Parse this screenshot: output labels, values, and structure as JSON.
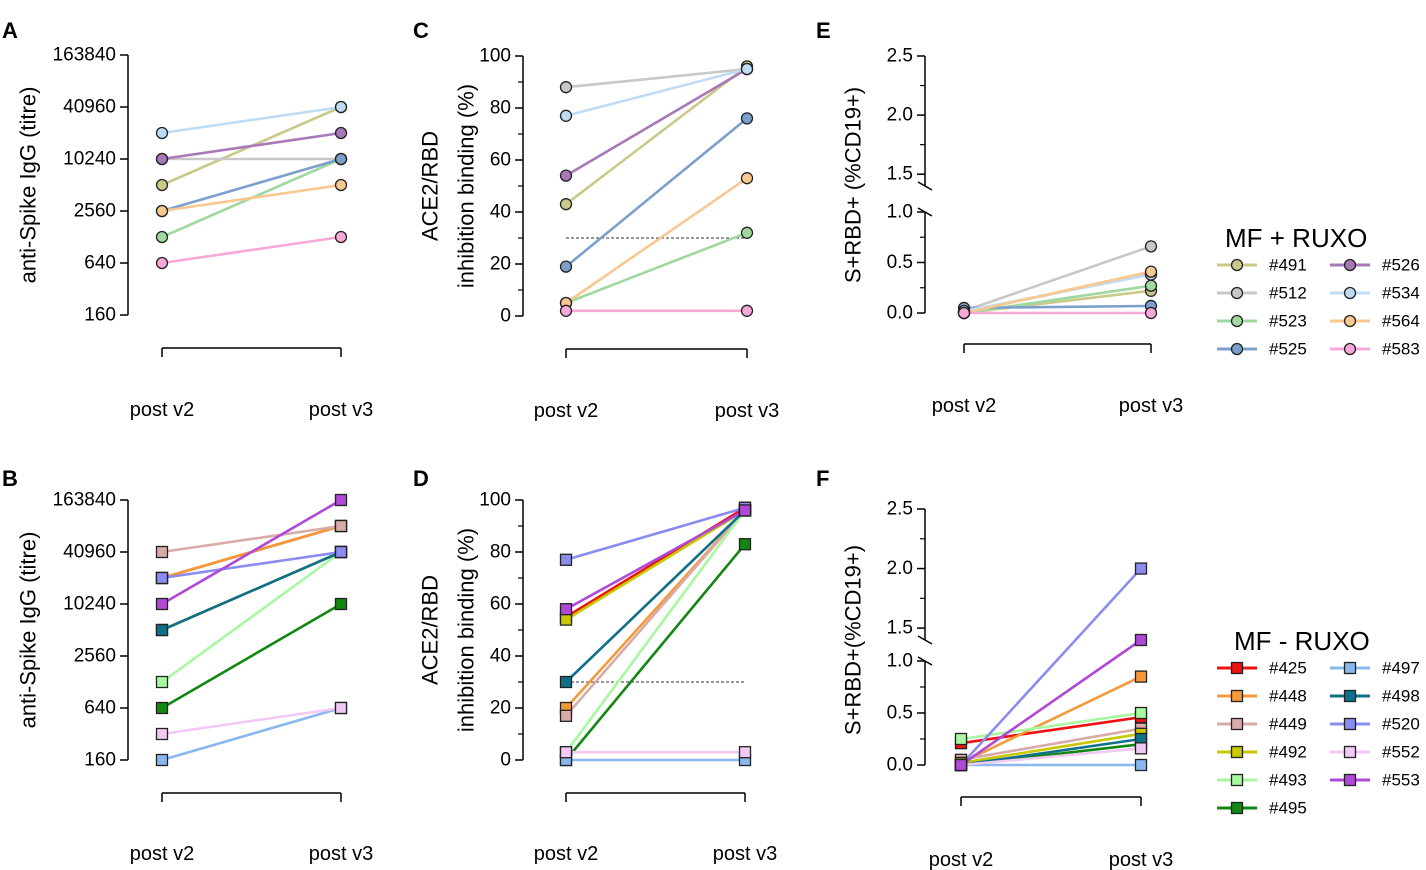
{
  "figure": {
    "legends": [
      {
        "title": "MF + RUXO",
        "marker": "circle",
        "entries": [
          {
            "id": "#491",
            "color": "#c9c98a"
          },
          {
            "id": "#512",
            "color": "#c8c8c8"
          },
          {
            "id": "#523",
            "color": "#a0d8a0"
          },
          {
            "id": "#525",
            "color": "#7ba0cc"
          },
          {
            "id": "#526",
            "color": "#a878b8"
          },
          {
            "id": "#534",
            "color": "#c0dcf4"
          },
          {
            "id": "#564",
            "color": "#f8c890"
          },
          {
            "id": "#583",
            "color": "#f8a8d8"
          }
        ]
      },
      {
        "title": "MF - RUXO",
        "marker": "square",
        "entries": [
          {
            "id": "#425",
            "color": "#ee1111"
          },
          {
            "id": "#448",
            "color": "#f59a3a"
          },
          {
            "id": "#449",
            "color": "#d8aaa8"
          },
          {
            "id": "#492",
            "color": "#c8c800"
          },
          {
            "id": "#493",
            "color": "#a8f8a0"
          },
          {
            "id": "#495",
            "color": "#118811"
          },
          {
            "id": "#497",
            "color": "#8ab8ee"
          },
          {
            "id": "#498",
            "color": "#10708a"
          },
          {
            "id": "#520",
            "color": "#8a8cf0"
          },
          {
            "id": "#552",
            "color": "#f4c8f4"
          },
          {
            "id": "#553",
            "color": "#b048d8"
          }
        ]
      }
    ]
  },
  "chart_data": [
    {
      "panel": "A",
      "type": "line",
      "scale": "log2",
      "legend": 0,
      "ylabel": "anti-Spike IgG (titre)",
      "categories": [
        "post v2",
        "post v3"
      ],
      "yticks": [
        160,
        640,
        2560,
        10240,
        40960,
        163840
      ],
      "ytick_labels": [
        "160",
        "640",
        "2560",
        "10240",
        "40960",
        "163840"
      ],
      "ylim": [
        160,
        163840
      ],
      "series": [
        {
          "name": "#491",
          "values": [
            5120,
            40960
          ]
        },
        {
          "name": "#512",
          "values": [
            10240,
            10240
          ]
        },
        {
          "name": "#523",
          "values": [
            1280,
            10240
          ]
        },
        {
          "name": "#525",
          "values": [
            2560,
            10240
          ]
        },
        {
          "name": "#526",
          "values": [
            10240,
            20480
          ]
        },
        {
          "name": "#534",
          "values": [
            20480,
            40960
          ]
        },
        {
          "name": "#564",
          "values": [
            2560,
            5120
          ]
        },
        {
          "name": "#583",
          "values": [
            640,
            1280
          ]
        }
      ]
    },
    {
      "panel": "B",
      "type": "line",
      "scale": "log2",
      "legend": 1,
      "ylabel": "anti-Spike IgG (titre)",
      "categories": [
        "post v2",
        "post v3"
      ],
      "yticks": [
        160,
        640,
        2560,
        10240,
        40960,
        163840
      ],
      "ytick_labels": [
        "160",
        "640",
        "2560",
        "10240",
        "40960",
        "163840"
      ],
      "ylim": [
        160,
        163840
      ],
      "series": [
        {
          "name": "#425",
          "values": [
            20480,
            81920
          ]
        },
        {
          "name": "#448",
          "values": [
            20480,
            81920
          ]
        },
        {
          "name": "#449",
          "values": [
            40960,
            81920
          ]
        },
        {
          "name": "#492",
          "values": [
            5120,
            40960
          ]
        },
        {
          "name": "#493",
          "values": [
            1280,
            40960
          ]
        },
        {
          "name": "#495",
          "values": [
            640,
            10240
          ]
        },
        {
          "name": "#497",
          "values": [
            160,
            640
          ]
        },
        {
          "name": "#498",
          "values": [
            5120,
            40960
          ]
        },
        {
          "name": "#520",
          "values": [
            20480,
            40960
          ]
        },
        {
          "name": "#552",
          "values": [
            320,
            640
          ]
        },
        {
          "name": "#553",
          "values": [
            10240,
            163840
          ]
        }
      ]
    },
    {
      "panel": "C",
      "type": "line",
      "scale": "linear",
      "legend": 0,
      "ylabel": "ACE2/RBD",
      "ylabel2": "inhibition binding (%)",
      "categories": [
        "post v2",
        "post v3"
      ],
      "yticks": [
        0,
        20,
        40,
        60,
        80,
        100
      ],
      "ytick_labels": [
        "0",
        "20",
        "40",
        "60",
        "80",
        "100"
      ],
      "ylim": [
        0,
        100
      ],
      "reference_line": 30,
      "series": [
        {
          "name": "#491",
          "values": [
            43,
            96
          ]
        },
        {
          "name": "#512",
          "values": [
            88,
            95
          ]
        },
        {
          "name": "#523",
          "values": [
            5,
            32
          ]
        },
        {
          "name": "#525",
          "values": [
            19,
            76
          ]
        },
        {
          "name": "#526",
          "values": [
            54,
            95
          ]
        },
        {
          "name": "#534",
          "values": [
            77,
            95
          ]
        },
        {
          "name": "#564",
          "values": [
            5,
            53
          ]
        },
        {
          "name": "#583",
          "values": [
            2,
            2
          ]
        }
      ]
    },
    {
      "panel": "D",
      "type": "line",
      "scale": "linear",
      "legend": 1,
      "ylabel": "ACE2/RBD",
      "ylabel2": "inhibition binding (%)",
      "categories": [
        "post v2",
        "post v3"
      ],
      "yticks": [
        0,
        20,
        40,
        60,
        80,
        100
      ],
      "ytick_labels": [
        "0",
        "20",
        "40",
        "60",
        "80",
        "100"
      ],
      "ylim": [
        0,
        100
      ],
      "reference_line": 30,
      "series": [
        {
          "name": "#425",
          "values": [
            55,
            97
          ]
        },
        {
          "name": "#448",
          "values": [
            20,
            96
          ]
        },
        {
          "name": "#449",
          "values": [
            17,
            96
          ]
        },
        {
          "name": "#492",
          "values": [
            54,
            96
          ]
        },
        {
          "name": "#493",
          "values": [
            3,
            96
          ]
        },
        {
          "name": "#495",
          "values": [
            0,
            83
          ]
        },
        {
          "name": "#497",
          "values": [
            0,
            0
          ]
        },
        {
          "name": "#498",
          "values": [
            30,
            96
          ]
        },
        {
          "name": "#520",
          "values": [
            77,
            97
          ]
        },
        {
          "name": "#552",
          "values": [
            3,
            3
          ]
        },
        {
          "name": "#553",
          "values": [
            58,
            96
          ]
        }
      ]
    },
    {
      "panel": "E",
      "type": "line",
      "scale": "broken",
      "legend": 0,
      "ylabel": "S+RBD+ (%CD19+)",
      "categories": [
        "post v2",
        "post v3"
      ],
      "yticks_lower": [
        0.0,
        0.5,
        1.0
      ],
      "ytick_labels_lower": [
        "0.0",
        "0.5",
        "1.0"
      ],
      "yticks_upper": [
        1.5,
        2.0,
        2.5
      ],
      "ytick_labels_upper": [
        "1.5",
        "2.0",
        "2.5"
      ],
      "ylim_lower": [
        0,
        1.0
      ],
      "ylim_upper": [
        1.4,
        2.5
      ],
      "series": [
        {
          "name": "#491",
          "values": [
            0.0,
            0.22
          ]
        },
        {
          "name": "#512",
          "values": [
            0.02,
            0.66
          ]
        },
        {
          "name": "#523",
          "values": [
            0.0,
            0.27
          ]
        },
        {
          "name": "#525",
          "values": [
            0.05,
            0.07
          ]
        },
        {
          "name": "#526",
          "values": [
            0.01,
            0.39
          ]
        },
        {
          "name": "#534",
          "values": [
            0.02,
            0.38
          ]
        },
        {
          "name": "#564",
          "values": [
            0.0,
            0.41
          ]
        },
        {
          "name": "#583",
          "values": [
            0.0,
            0.0
          ]
        }
      ]
    },
    {
      "panel": "F",
      "type": "line",
      "scale": "broken",
      "legend": 1,
      "ylabel": "S+RBD+(%CD19+)",
      "categories": [
        "post v2",
        "post v3"
      ],
      "yticks_lower": [
        0.0,
        0.5,
        1.0
      ],
      "ytick_labels_lower": [
        "0.0",
        "0.5",
        "1.0"
      ],
      "yticks_upper": [
        1.5,
        2.0,
        2.5
      ],
      "ytick_labels_upper": [
        "1.5",
        "2.0",
        "2.5"
      ],
      "ylim_lower": [
        0,
        1.0
      ],
      "ylim_upper": [
        1.4,
        2.5
      ],
      "series": [
        {
          "name": "#425",
          "values": [
            0.21,
            0.46
          ]
        },
        {
          "name": "#448",
          "values": [
            0.02,
            0.85
          ]
        },
        {
          "name": "#449",
          "values": [
            0.05,
            0.35
          ]
        },
        {
          "name": "#492",
          "values": [
            0.02,
            0.3
          ]
        },
        {
          "name": "#493",
          "values": [
            0.25,
            0.5
          ]
        },
        {
          "name": "#495",
          "values": [
            0.0,
            0.2
          ]
        },
        {
          "name": "#497",
          "values": [
            0.0,
            0.0
          ]
        },
        {
          "name": "#498",
          "values": [
            0.0,
            0.25
          ]
        },
        {
          "name": "#520",
          "values": [
            0.0,
            2.0
          ]
        },
        {
          "name": "#552",
          "values": [
            0.0,
            0.16
          ]
        },
        {
          "name": "#553",
          "values": [
            0.0,
            1.4
          ]
        }
      ]
    }
  ]
}
